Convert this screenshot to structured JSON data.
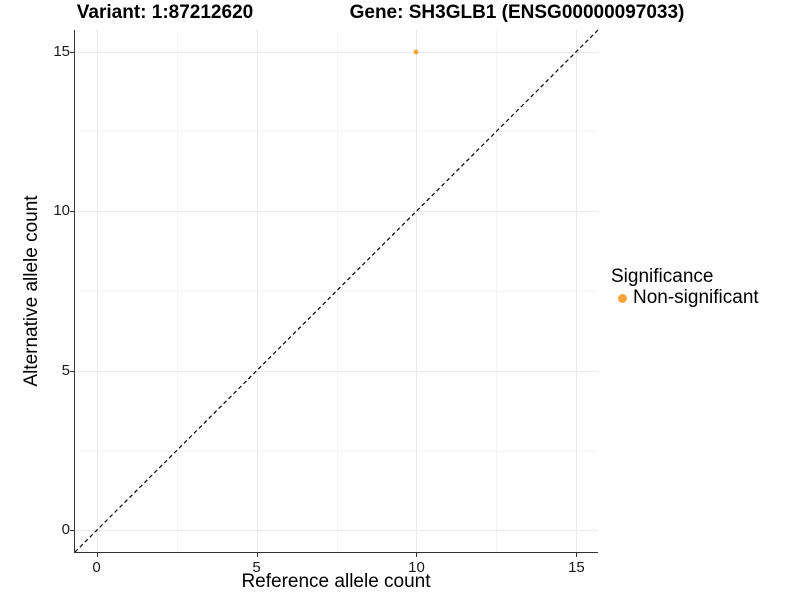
{
  "chart_data": {
    "type": "scatter",
    "titles": {
      "variant": "Variant: 1:87212620",
      "gene": "Gene: SH3GLB1 (ENSG00000097033)"
    },
    "xlabel": "Reference allele count",
    "ylabel": "Alternative allele count",
    "xlim": [
      -0.675,
      15.675
    ],
    "ylim": [
      -0.675,
      15.675
    ],
    "x_major_ticks": [
      0,
      5,
      10,
      15
    ],
    "x_minor_ticks": [
      2.5,
      7.5,
      12.5
    ],
    "y_major_ticks": [
      0,
      5,
      10,
      15
    ],
    "y_minor_ticks": [
      2.5,
      7.5,
      12.5
    ],
    "grid": "major+minor",
    "points": [
      {
        "x": 10,
        "y": 15,
        "significance": "Non-significant",
        "color": "#FAA43A"
      }
    ],
    "abline": {
      "slope": 1,
      "intercept": 0,
      "linetype": "dashed",
      "color": "#000000"
    },
    "legend": {
      "title": "Significance",
      "position": "right",
      "items": [
        {
          "label": "Non-significant",
          "color": "#FAA43A"
        }
      ]
    },
    "colors": {
      "grid_major": "#EBEBEB",
      "grid_minor": "#F4F4F4",
      "axis_line": "#333333",
      "tick_text": "#1a1a1a",
      "background": "#FFFFFF"
    }
  }
}
